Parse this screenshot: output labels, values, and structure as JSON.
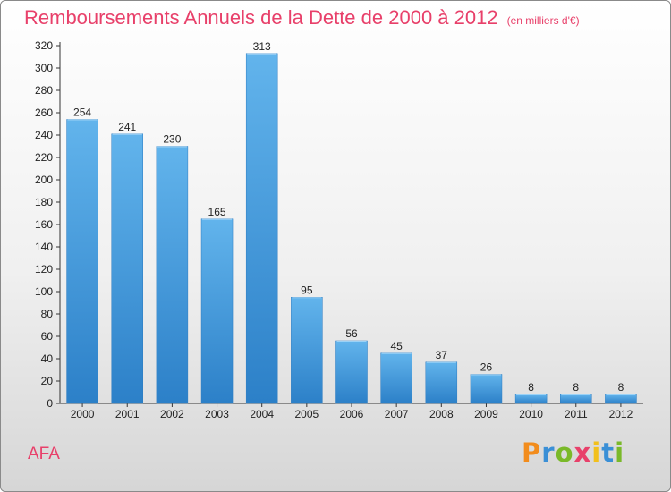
{
  "header": {
    "title": "Remboursements Annuels de la Dette de 2000 à 2012",
    "unit": "(en milliers d'€)"
  },
  "commune": "AFA",
  "logo": {
    "letters": [
      "P",
      "r",
      "o",
      "x",
      "i",
      "t",
      "i"
    ],
    "colors": [
      "#f28c1c",
      "#3a8fd6",
      "#7ab929",
      "#e8406a",
      "#f2c01c",
      "#3a8fd6",
      "#7ab929"
    ],
    "icon_name": "proxiti-logo"
  },
  "colors": {
    "bar": "#3c9ee0",
    "bar_light": "#62b4ec",
    "bar_dark": "#2c80c8",
    "title": "#e8406a",
    "axis": "#333333"
  },
  "chart_data": {
    "type": "bar",
    "categories": [
      "2000",
      "2001",
      "2002",
      "2003",
      "2004",
      "2005",
      "2006",
      "2007",
      "2008",
      "2009",
      "2010",
      "2011",
      "2012"
    ],
    "values": [
      254,
      241,
      230,
      165,
      313,
      95,
      56,
      45,
      37,
      26,
      8,
      8,
      8
    ],
    "data_labels": [
      "254",
      "241",
      "230",
      "165",
      "313",
      "95",
      "56",
      "45",
      "37",
      "26",
      "8",
      "8",
      "8"
    ],
    "yticks": [
      "0",
      "20",
      "40",
      "60",
      "80",
      "100",
      "120",
      "140",
      "160",
      "180",
      "200",
      "220",
      "240",
      "260",
      "280",
      "300",
      "320"
    ],
    "ylim": [
      0,
      320
    ],
    "grid": false,
    "legend": "none"
  }
}
